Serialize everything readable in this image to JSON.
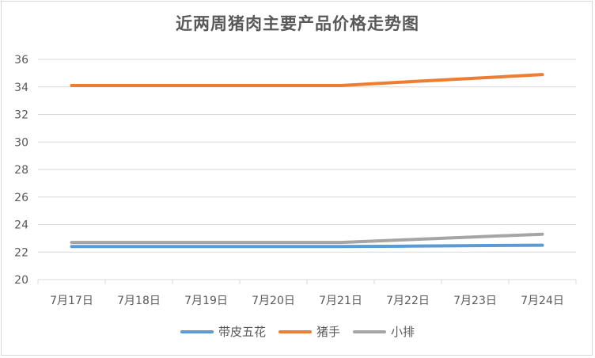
{
  "chart_data": {
    "type": "line",
    "title": "近两周猪肉主要产品价格走势图",
    "categories": [
      "7月17日",
      "7月18日",
      "7月19日",
      "7月20日",
      "7月21日",
      "7月22日",
      "7月23日",
      "7月24日"
    ],
    "ylim": [
      20,
      36
    ],
    "yticks": [
      20,
      22,
      24,
      26,
      28,
      30,
      32,
      34,
      36
    ],
    "grid": true,
    "legend": "bottom",
    "series": [
      {
        "name": "带皮五花",
        "color": "#5b9bd5",
        "values": [
          22.4,
          22.4,
          22.4,
          22.4,
          22.4,
          22.43,
          22.47,
          22.5
        ]
      },
      {
        "name": "猪手",
        "color": "#ed7d31",
        "values": [
          34.1,
          34.1,
          34.1,
          34.1,
          34.1,
          34.37,
          34.63,
          34.9
        ]
      },
      {
        "name": "小排",
        "color": "#a5a5a5",
        "values": [
          22.7,
          22.7,
          22.7,
          22.7,
          22.7,
          22.9,
          23.1,
          23.3
        ]
      }
    ]
  }
}
